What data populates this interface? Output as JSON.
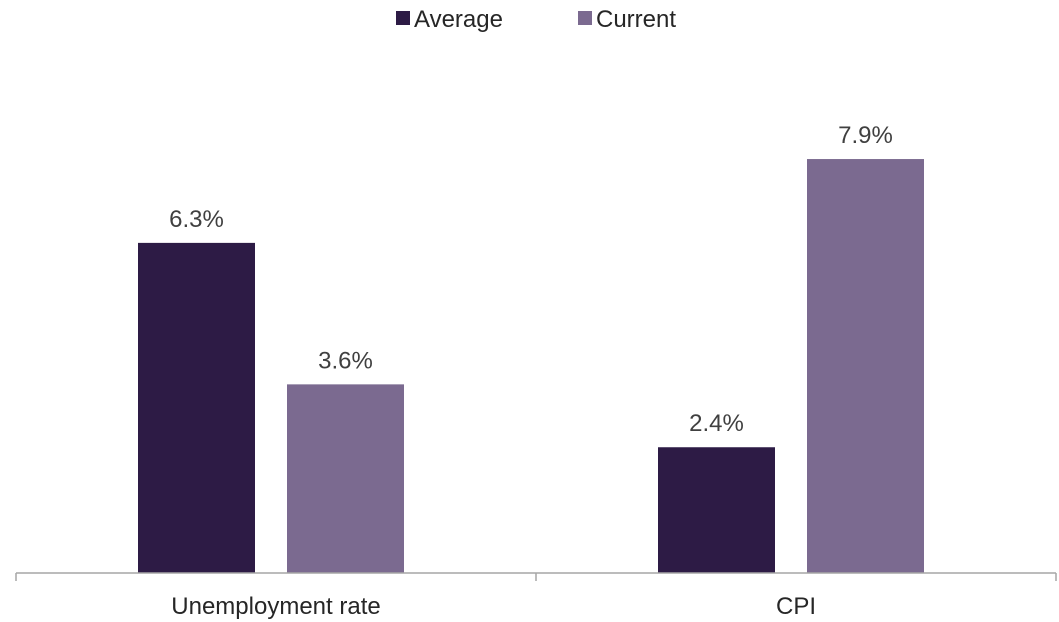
{
  "chart_data": {
    "type": "bar",
    "categories": [
      "Unemployment rate",
      "CPI"
    ],
    "series": [
      {
        "name": "Average",
        "values": [
          6.3,
          2.4
        ],
        "labels": [
          "6.3%",
          "2.4%"
        ],
        "color": "#2d1b45"
      },
      {
        "name": "Current",
        "values": [
          3.6,
          7.9
        ],
        "labels": [
          "3.6%",
          "7.9%"
        ],
        "color": "#7b6a90"
      }
    ],
    "ylim": [
      0,
      10
    ],
    "grid": false,
    "legend_position": "top-center"
  }
}
